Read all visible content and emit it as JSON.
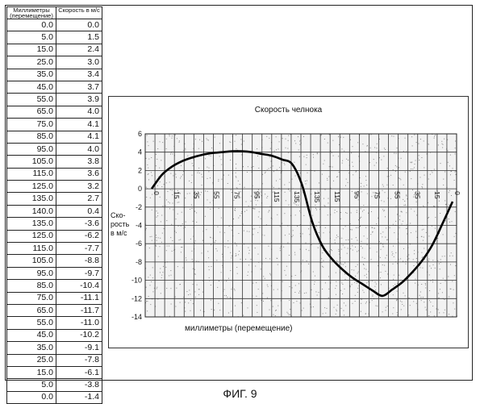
{
  "table": {
    "header_col1": "Миллиметры (перемещение)",
    "header_col2": "Скорость в м/с",
    "rows": [
      [
        "0.0",
        "0.0"
      ],
      [
        "5.0",
        "1.5"
      ],
      [
        "15.0",
        "2.4"
      ],
      [
        "25.0",
        "3.0"
      ],
      [
        "35.0",
        "3.4"
      ],
      [
        "45.0",
        "3.7"
      ],
      [
        "55.0",
        "3.9"
      ],
      [
        "65.0",
        "4.0"
      ],
      [
        "75.0",
        "4.1"
      ],
      [
        "85.0",
        "4.1"
      ],
      [
        "95.0",
        "4.0"
      ],
      [
        "105.0",
        "3.8"
      ],
      [
        "115.0",
        "3.6"
      ],
      [
        "125.0",
        "3.2"
      ],
      [
        "135.0",
        "2.7"
      ],
      [
        "140.0",
        "0.4"
      ],
      [
        "135.0",
        "-3.6"
      ],
      [
        "125.0",
        "-6.2"
      ],
      [
        "115.0",
        "-7.7"
      ],
      [
        "105.0",
        "-8.8"
      ],
      [
        "95.0",
        "-9.7"
      ],
      [
        "85.0",
        "-10.4"
      ],
      [
        "75.0",
        "-11.1"
      ],
      [
        "65.0",
        "-11.7"
      ],
      [
        "55.0",
        "-11.0"
      ],
      [
        "45.0",
        "-10.2"
      ],
      [
        "35.0",
        "-9.1"
      ],
      [
        "25.0",
        "-7.8"
      ],
      [
        "15.0",
        "-6.1"
      ],
      [
        "5.0",
        "-3.8"
      ],
      [
        "0.0",
        "-1.4"
      ]
    ]
  },
  "chart_data": {
    "type": "line",
    "title": "Скорость челнока",
    "xlabel": "миллиметры (перемещение)",
    "ylabel": "Ско- рость в м/с",
    "ylim": [
      -14,
      6
    ],
    "yticks": [
      "6",
      "4",
      "2",
      "0",
      "-2",
      "-4",
      "-6",
      "-8",
      "-10",
      "-12",
      "-14"
    ],
    "xtick_labels": [
      "0",
      "15",
      "35",
      "55",
      "75",
      "95",
      "115",
      "135",
      "135",
      "115",
      "95",
      "75",
      "55",
      "35",
      "15",
      "0"
    ],
    "grid": true,
    "legend": "none",
    "line_color": "#000000",
    "series": [
      {
        "x": [
          "0.0",
          "5.0",
          "15.0",
          "25.0",
          "35.0",
          "45.0",
          "55.0",
          "65.0",
          "75.0",
          "85.0",
          "95.0",
          "105.0",
          "115.0",
          "125.0",
          "135.0",
          "140.0",
          "135.0",
          "125.0",
          "115.0",
          "105.0",
          "95.0",
          "85.0",
          "75.0",
          "65.0",
          "55.0",
          "45.0",
          "35.0",
          "25.0",
          "15.0",
          "5.0",
          "0.0"
        ],
        "values": [
          0.0,
          1.5,
          2.4,
          3.0,
          3.4,
          3.7,
          3.9,
          4.0,
          4.1,
          4.1,
          4.0,
          3.8,
          3.6,
          3.2,
          2.7,
          0.4,
          -3.6,
          -6.2,
          -7.7,
          -8.8,
          -9.7,
          -10.4,
          -11.1,
          -11.7,
          -11.0,
          -10.2,
          -9.1,
          -7.8,
          -6.1,
          -3.8,
          -1.4
        ]
      }
    ]
  },
  "caption": "ФИГ. 9"
}
